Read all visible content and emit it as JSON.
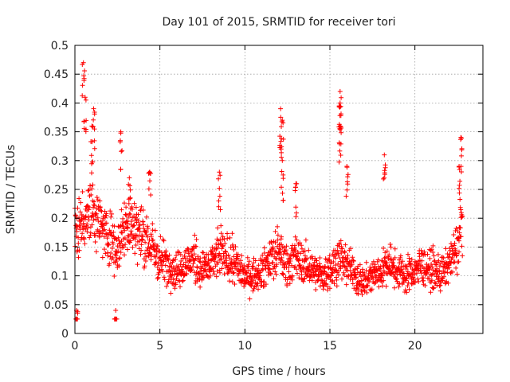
{
  "chart_data": {
    "type": "scatter",
    "title": "Day 101 of 2015, SRMTID for receiver tori",
    "xlabel": "GPS time / hours",
    "ylabel": "SRMTID / TECUs",
    "xlim": [
      0,
      24
    ],
    "ylim": [
      0,
      0.5
    ],
    "xticks": [
      0,
      5,
      10,
      15,
      20
    ],
    "yticks": [
      0,
      0.05,
      0.1,
      0.15,
      0.2,
      0.25,
      0.3,
      0.35,
      0.4,
      0.45,
      0.5
    ],
    "grid": true,
    "marker": "plus",
    "color": "#ff0000",
    "series": [
      {
        "envelope_hours": [
          0,
          0.5,
          1,
          1.5,
          2,
          2.5,
          3,
          3.5,
          4,
          4.5,
          5,
          5.5,
          6,
          6.5,
          7,
          7.5,
          8,
          8.5,
          9,
          9.5,
          10,
          10.5,
          11,
          11.5,
          12,
          12.5,
          13,
          13.5,
          14,
          14.5,
          15,
          15.5,
          16,
          16.5,
          17,
          17.5,
          18,
          18.5,
          19,
          19.5,
          20,
          20.5,
          21,
          21.5,
          22,
          22.5,
          22.8
        ],
        "typical_values": [
          0.17,
          0.2,
          0.22,
          0.19,
          0.17,
          0.15,
          0.19,
          0.18,
          0.17,
          0.15,
          0.13,
          0.12,
          0.11,
          0.12,
          0.13,
          0.11,
          0.12,
          0.14,
          0.13,
          0.12,
          0.1,
          0.1,
          0.11,
          0.13,
          0.14,
          0.12,
          0.13,
          0.12,
          0.11,
          0.1,
          0.11,
          0.13,
          0.12,
          0.1,
          0.09,
          0.1,
          0.11,
          0.12,
          0.11,
          0.1,
          0.11,
          0.12,
          0.11,
          0.1,
          0.12,
          0.15,
          0.2
        ],
        "spikes": [
          {
            "x": 0.5,
            "y": 0.47
          },
          {
            "x": 0.6,
            "y": 0.41
          },
          {
            "x": 1.1,
            "y": 0.39
          },
          {
            "x": 1.0,
            "y": 0.36
          },
          {
            "x": 2.7,
            "y": 0.35
          },
          {
            "x": 3.2,
            "y": 0.27
          },
          {
            "x": 4.4,
            "y": 0.28
          },
          {
            "x": 8.5,
            "y": 0.28
          },
          {
            "x": 12.1,
            "y": 0.39
          },
          {
            "x": 12.2,
            "y": 0.37
          },
          {
            "x": 12.2,
            "y": 0.3
          },
          {
            "x": 13.0,
            "y": 0.26
          },
          {
            "x": 15.6,
            "y": 0.42
          },
          {
            "x": 15.6,
            "y": 0.4
          },
          {
            "x": 15.6,
            "y": 0.36
          },
          {
            "x": 16.0,
            "y": 0.29
          },
          {
            "x": 18.2,
            "y": 0.31
          },
          {
            "x": 22.7,
            "y": 0.34
          },
          {
            "x": 22.6,
            "y": 0.29
          },
          {
            "x": 2.4,
            "y": 0.04
          },
          {
            "x": 0.1,
            "y": 0.04
          }
        ]
      }
    ]
  }
}
